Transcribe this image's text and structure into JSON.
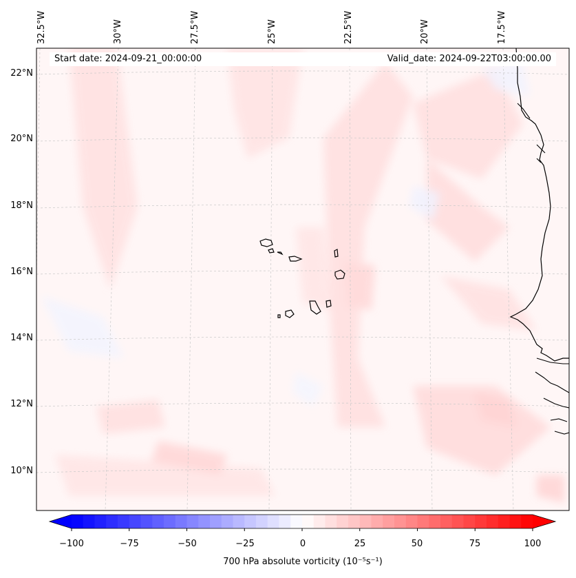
{
  "map": {
    "start_date": "Start date: 2024-09-21_00:00:00",
    "valid_date": "Valid_date: 2024-09-22T03:00:00.00",
    "longitude_labels": [
      "32.5°W",
      "30°W",
      "27.5°W",
      "25°W",
      "22.5°W",
      "20°W",
      "17.5°W"
    ],
    "latitude_labels": [
      "22°N",
      "20°N",
      "18°N",
      "16°N",
      "14°N",
      "12°N",
      "10°N"
    ],
    "field": "700 hPa absolute vorticity",
    "colors": {
      "positive": "#ff0000",
      "negative": "#0000ff",
      "background_tint": "#fff4f4",
      "coastline": "#000000",
      "gridline": "#cccccc"
    }
  },
  "colorbar": {
    "label": "700 hPa absolute vorticity (10⁻⁵s⁻¹)",
    "ticks": [
      "−100",
      "−75",
      "−50",
      "−25",
      "0",
      "25",
      "50",
      "75",
      "100"
    ],
    "min": -100,
    "max": 100,
    "extend": "both",
    "cmap": "bwr"
  }
}
